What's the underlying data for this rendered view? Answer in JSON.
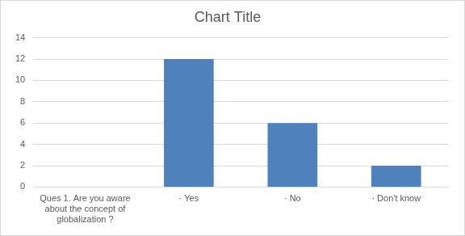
{
  "chart_data": {
    "type": "bar",
    "title": "Chart Title",
    "categories": [
      "Ques 1. Are you aware about the concept of globalization ?",
      "· Yes",
      "· No",
      "· Don't know"
    ],
    "values": [
      null,
      12,
      6,
      2
    ],
    "color": "#4f81bd",
    "ylim": [
      0,
      14
    ],
    "yticks": [
      0,
      2,
      4,
      6,
      8,
      10,
      12,
      14
    ],
    "grid": true
  }
}
